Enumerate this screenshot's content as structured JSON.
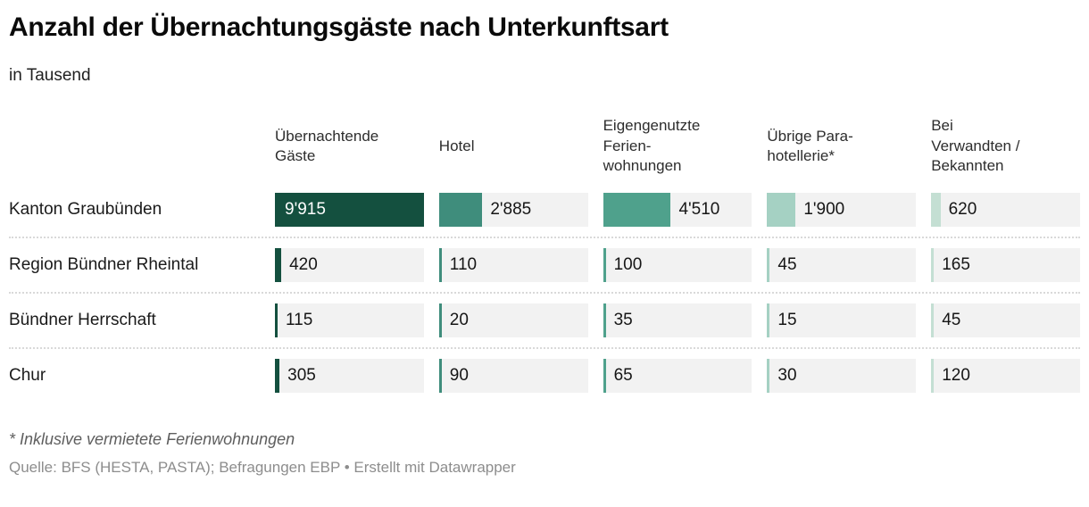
{
  "header": {
    "title": "Anzahl der Übernachtungsgäste nach Unterkunftsart",
    "subtitle": "in Tausend"
  },
  "table": {
    "row_header_labels": [
      "Kanton Graubünden",
      "Region Bündner Rheintal",
      "Bündner Herrschaft",
      "Chur"
    ],
    "column_header_labels": [
      "Übernachtende\nGäste",
      "Hotel",
      "Eigengenutzte\nFerien-\nwohnungen",
      "Übrige Para-\nhotellerie*",
      "Bei\nVerwandten /\nBekannten"
    ]
  },
  "chart_data": {
    "type": "bar",
    "subtype": "bars-in-table",
    "title": "Anzahl der Übernachtungsgäste nach Unterkunftsart",
    "subtitle": "in Tausend",
    "unit": "Tausend",
    "categories": [
      "Kanton Graubünden",
      "Region Bündner Rheintal",
      "Bündner Herrschaft",
      "Chur"
    ],
    "series": [
      {
        "name": "Übernachtende Gäste",
        "color": "#14503f",
        "values": [
          9915,
          420,
          115,
          305
        ],
        "labels": [
          "9'915",
          "420",
          "115",
          "305"
        ]
      },
      {
        "name": "Hotel",
        "color": "#3f8d7c",
        "values": [
          2885,
          110,
          20,
          90
        ],
        "labels": [
          "2'885",
          "110",
          "20",
          "90"
        ]
      },
      {
        "name": "Eigengenutzte Ferienwohnungen",
        "color": "#4fa18c",
        "values": [
          4510,
          100,
          35,
          65
        ],
        "labels": [
          "4'510",
          "100",
          "35",
          "65"
        ]
      },
      {
        "name": "Übrige Parahotellerie*",
        "color": "#a5d1c3",
        "values": [
          1900,
          45,
          15,
          30
        ],
        "labels": [
          "1'900",
          "45",
          "15",
          "30"
        ]
      },
      {
        "name": "Bei Verwandten / Bekannten",
        "color": "#c4dfd3",
        "values": [
          620,
          165,
          45,
          120
        ],
        "labels": [
          "620",
          "165",
          "45",
          "120"
        ]
      }
    ],
    "scale_max": 9915,
    "track_color": "#f2f2f2",
    "grid": false,
    "legend_position": "none"
  },
  "footer": {
    "footnote": "* Inklusive vermietete Ferienwohnungen",
    "source": "Quelle: BFS (HESTA, PASTA); Befragungen EBP • Erstellt mit Datawrapper"
  }
}
